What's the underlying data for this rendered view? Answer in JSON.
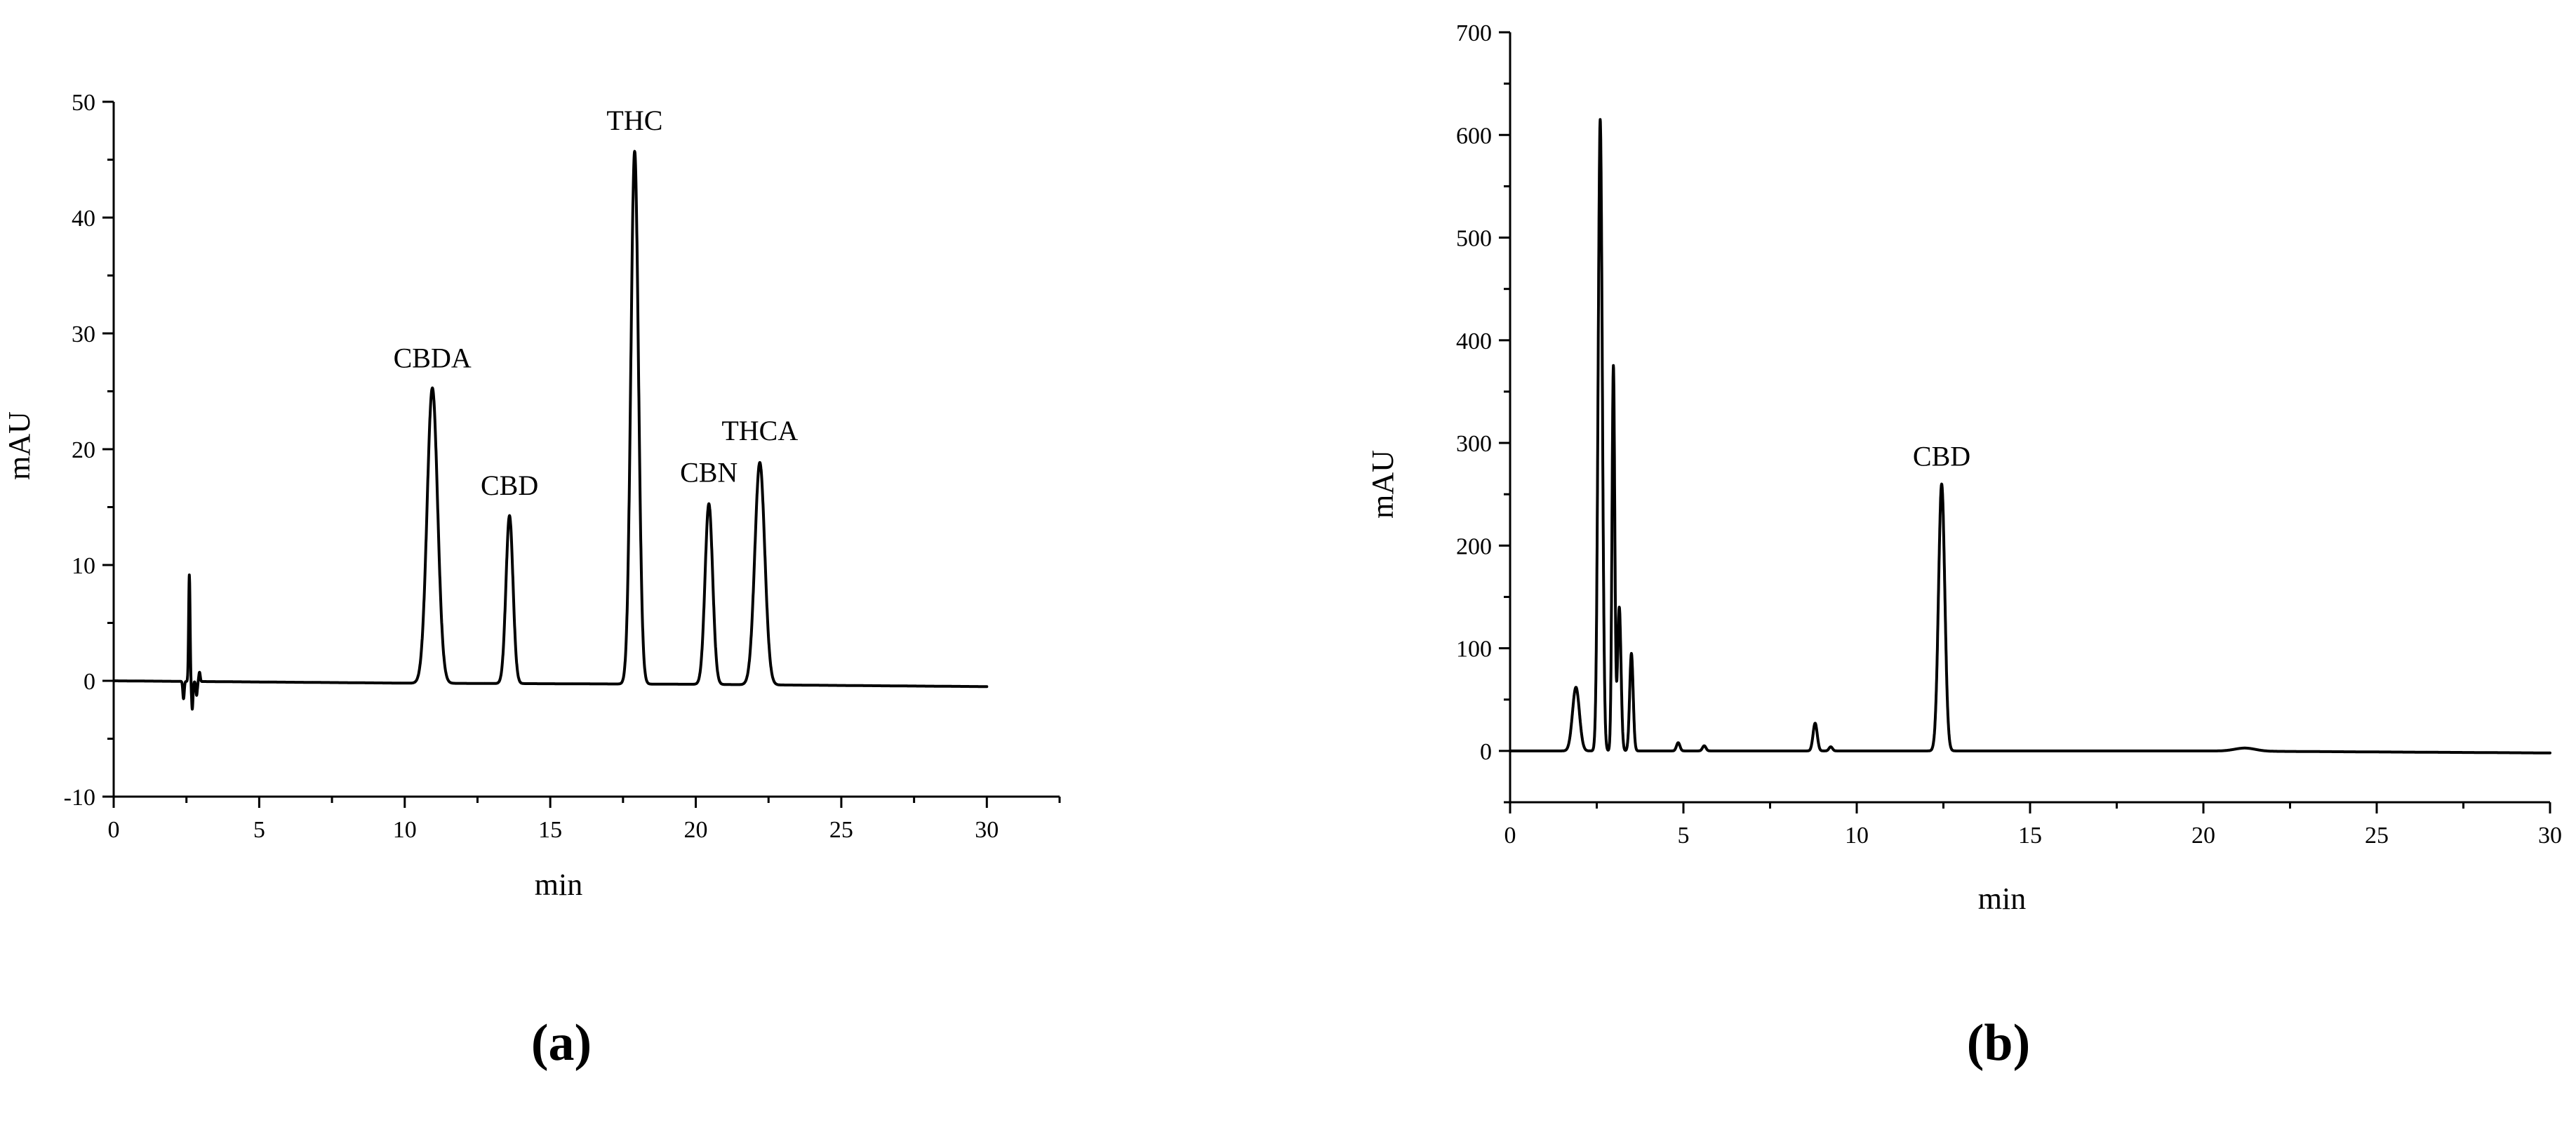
{
  "chart_data": [
    {
      "id": "a",
      "type": "line",
      "panel_label": "(a)",
      "xlabel": "min",
      "ylabel": "mAU",
      "xlim": [
        0,
        32.5
      ],
      "ylim": [
        -10,
        50
      ],
      "x_ticks": [
        0,
        5,
        10,
        15,
        20,
        25,
        30
      ],
      "y_ticks": [
        -10,
        0,
        10,
        20,
        30,
        40,
        50
      ],
      "grid": false,
      "baseline": [
        [
          0,
          0
        ],
        [
          10,
          -0.2
        ],
        [
          20,
          -0.3
        ],
        [
          30,
          -0.5
        ]
      ],
      "disturbances": [
        {
          "x": 2.4,
          "y": -1.5
        },
        {
          "x": 2.6,
          "y": 9.2
        },
        {
          "x": 2.7,
          "y": -2.4
        },
        {
          "x": 2.85,
          "y": -1.2
        },
        {
          "x": 2.95,
          "y": 0.8
        }
      ],
      "peaks": [
        {
          "label": "CBDA",
          "x": 10.95,
          "y": 25.5,
          "width": 0.18
        },
        {
          "label": "CBD",
          "x": 13.6,
          "y": 14.5,
          "width": 0.12
        },
        {
          "label": "THC",
          "x": 17.9,
          "y": 46,
          "width": 0.13
        },
        {
          "label": "CBN",
          "x": 20.45,
          "y": 15.6,
          "width": 0.13
        },
        {
          "label": "THCA",
          "x": 22.2,
          "y": 19.2,
          "width": 0.17
        }
      ]
    },
    {
      "id": "b",
      "type": "line",
      "panel_label": "(b)",
      "xlabel": "min",
      "ylabel": "mAU",
      "xlim": [
        0,
        30
      ],
      "ylim": [
        -50,
        700
      ],
      "x_ticks": [
        0,
        5,
        10,
        15,
        20,
        25,
        30
      ],
      "y_ticks": [
        0,
        100,
        200,
        300,
        400,
        500,
        600,
        700
      ],
      "grid": false,
      "baseline": [
        [
          0,
          0
        ],
        [
          10,
          0
        ],
        [
          20,
          0
        ],
        [
          30,
          -2
        ]
      ],
      "peaks": [
        {
          "label": "",
          "x": 1.9,
          "y": 62,
          "width": 0.1
        },
        {
          "label": "",
          "x": 2.6,
          "y": 615,
          "width": 0.06
        },
        {
          "label": "",
          "x": 2.98,
          "y": 375,
          "width": 0.04
        },
        {
          "label": "",
          "x": 3.15,
          "y": 140,
          "width": 0.05
        },
        {
          "label": "",
          "x": 3.5,
          "y": 95,
          "width": 0.05
        },
        {
          "label": "",
          "x": 4.85,
          "y": 8,
          "width": 0.05
        },
        {
          "label": "",
          "x": 5.6,
          "y": 5,
          "width": 0.05
        },
        {
          "label": "",
          "x": 8.8,
          "y": 27,
          "width": 0.06
        },
        {
          "label": "",
          "x": 9.25,
          "y": 4,
          "width": 0.05
        },
        {
          "label": "CBD",
          "x": 12.45,
          "y": 260,
          "width": 0.09
        },
        {
          "label": "",
          "x": 21.2,
          "y": 3,
          "width": 0.3
        }
      ]
    }
  ]
}
